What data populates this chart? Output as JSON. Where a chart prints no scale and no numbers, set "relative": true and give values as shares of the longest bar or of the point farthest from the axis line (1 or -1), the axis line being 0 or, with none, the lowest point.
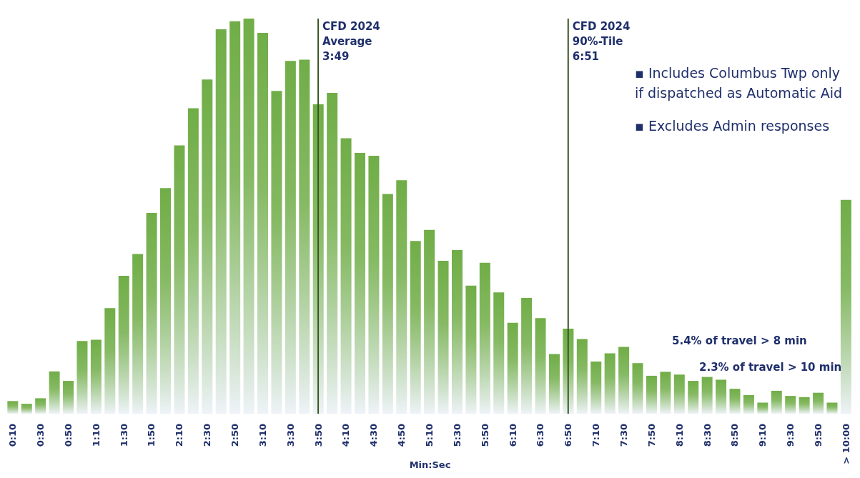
{
  "chart_data": {
    "type": "bar",
    "relative": true,
    "xlabel": "Min:Sec",
    "color": "#70ad47",
    "categories": [
      "0:10",
      null,
      "0:30",
      null,
      "0:50",
      null,
      "1:10",
      null,
      "1:30",
      null,
      "1:50",
      null,
      "2:10",
      null,
      "2:30",
      null,
      "2:50",
      null,
      "3:10",
      null,
      "3:30",
      null,
      "3:50",
      null,
      "4:10",
      null,
      "4:30",
      null,
      "4:50",
      null,
      "5:10",
      null,
      "5:30",
      null,
      "5:50",
      null,
      "6:10",
      null,
      "6:30",
      null,
      "6:50",
      null,
      "7:10",
      null,
      "7:30",
      null,
      "7:50",
      null,
      "8:10",
      null,
      "8:30",
      null,
      "8:50",
      null,
      "9:10",
      null,
      "9:30",
      null,
      "9:50",
      null,
      "> 10:00"
    ],
    "values": [
      0.032,
      0.025,
      0.039,
      0.107,
      0.083,
      0.184,
      0.187,
      0.267,
      0.349,
      0.404,
      0.508,
      0.571,
      0.679,
      0.773,
      0.846,
      0.973,
      0.993,
      1,
      0.964,
      0.817,
      0.893,
      0.896,
      0.783,
      0.812,
      0.697,
      0.66,
      0.653,
      0.556,
      0.591,
      0.437,
      0.465,
      0.387,
      0.414,
      0.324,
      0.382,
      0.307,
      0.23,
      0.293,
      0.242,
      0.151,
      0.215,
      0.189,
      0.132,
      0.153,
      0.169,
      0.128,
      0.096,
      0.106,
      0.099,
      0.083,
      0.093,
      0.086,
      0.063,
      0.047,
      0.028,
      0.058,
      0.045,
      0.042,
      0.053,
      0.028,
      0.541
    ],
    "ref_lines": [
      {
        "axis": "x",
        "value": "3:50",
        "label": "CFD 2024\nAverage\n3:49",
        "color": "#375623"
      },
      {
        "axis": "x",
        "value": "6:50",
        "label": "CFD 2024\n90%-Tile\n6:51",
        "color": "#375623"
      }
    ],
    "annotations": [
      "▪ Includes Columbus Twp only if dispatched as Automatic Aid",
      "▪ Excludes Admin responses",
      "5.4% of travel > 8 min",
      "2.3% of travel > 10 min"
    ],
    "legend": false,
    "grid": false
  }
}
